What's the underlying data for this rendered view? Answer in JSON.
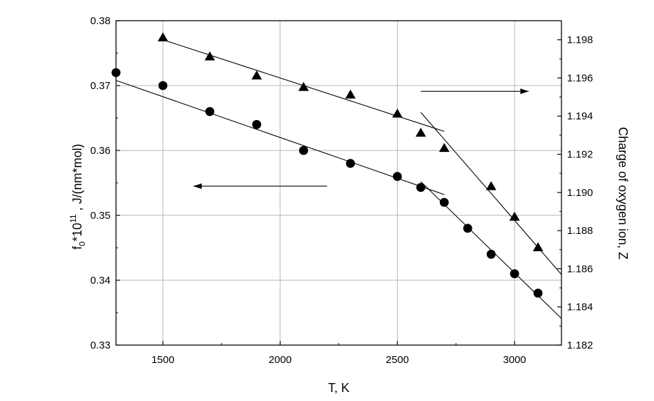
{
  "chart_data": {
    "type": "scatter",
    "xlabel": "T, K",
    "ylabel_left": {
      "base": "f",
      "sub": "0",
      "mid": "*10",
      "sup": "11",
      "rest": " , J/(nm*mol)"
    },
    "ylabel_right": "Charge of oxygen ion, Z",
    "xlim": [
      1300,
      3200
    ],
    "ylim_left": [
      0.33,
      0.38
    ],
    "ylim_right": [
      1.182,
      1.199
    ],
    "x_ticks": [
      1500,
      2000,
      2500,
      3000
    ],
    "x_tick_labels": [
      "1500",
      "2000",
      "2500",
      "3000"
    ],
    "y_left_ticks": [
      0.33,
      0.34,
      0.35,
      0.36,
      0.37,
      0.38
    ],
    "y_left_tick_labels": [
      "0.33",
      "0.34",
      "0.35",
      "0.36",
      "0.37",
      "0.38"
    ],
    "y_right_ticks": [
      1.182,
      1.184,
      1.186,
      1.188,
      1.19,
      1.192,
      1.194,
      1.196,
      1.198
    ],
    "y_right_tick_labels": [
      "1.182",
      "1.184",
      "1.186",
      "1.188",
      "1.190",
      "1.192",
      "1.194",
      "1.196",
      "1.198"
    ],
    "grid": true,
    "series": [
      {
        "marker": "circle",
        "axis": "left",
        "x": [
          1300,
          1500,
          1700,
          1900,
          2100,
          2300,
          2500,
          2600,
          2700,
          2800,
          2900,
          3000,
          3100
        ],
        "y": [
          0.372,
          0.37,
          0.366,
          0.364,
          0.36,
          0.358,
          0.356,
          0.3543,
          0.352,
          0.348,
          0.344,
          0.341,
          0.338
        ]
      },
      {
        "marker": "triangle",
        "axis": "right",
        "x": [
          1500,
          1700,
          1900,
          2100,
          2300,
          2500,
          2600,
          2700,
          2900,
          3000,
          3100
        ],
        "y": [
          1.1981,
          1.1971,
          1.1961,
          1.1955,
          1.1951,
          1.1941,
          1.1931,
          1.1923,
          1.1903,
          1.1887,
          1.1871
        ]
      }
    ],
    "fit_lines": [
      {
        "axis": "left",
        "x": [
          1300,
          2700
        ],
        "y": [
          0.3708,
          0.3532
        ]
      },
      {
        "axis": "left",
        "x": [
          2600,
          3200
        ],
        "y": [
          0.3552,
          0.3341
        ]
      },
      {
        "axis": "right",
        "x": [
          1500,
          2700
        ],
        "y": [
          1.198,
          1.1932
        ]
      },
      {
        "axis": "right",
        "x": [
          2600,
          3200
        ],
        "y": [
          1.1942,
          1.1857
        ]
      }
    ],
    "arrows": [
      {
        "direction": "left",
        "axis": "left",
        "x": [
          2200,
          1630
        ],
        "y": 0.3545
      },
      {
        "direction": "right",
        "axis": "right",
        "x": [
          2600,
          3060
        ],
        "y": 1.1953
      }
    ]
  }
}
